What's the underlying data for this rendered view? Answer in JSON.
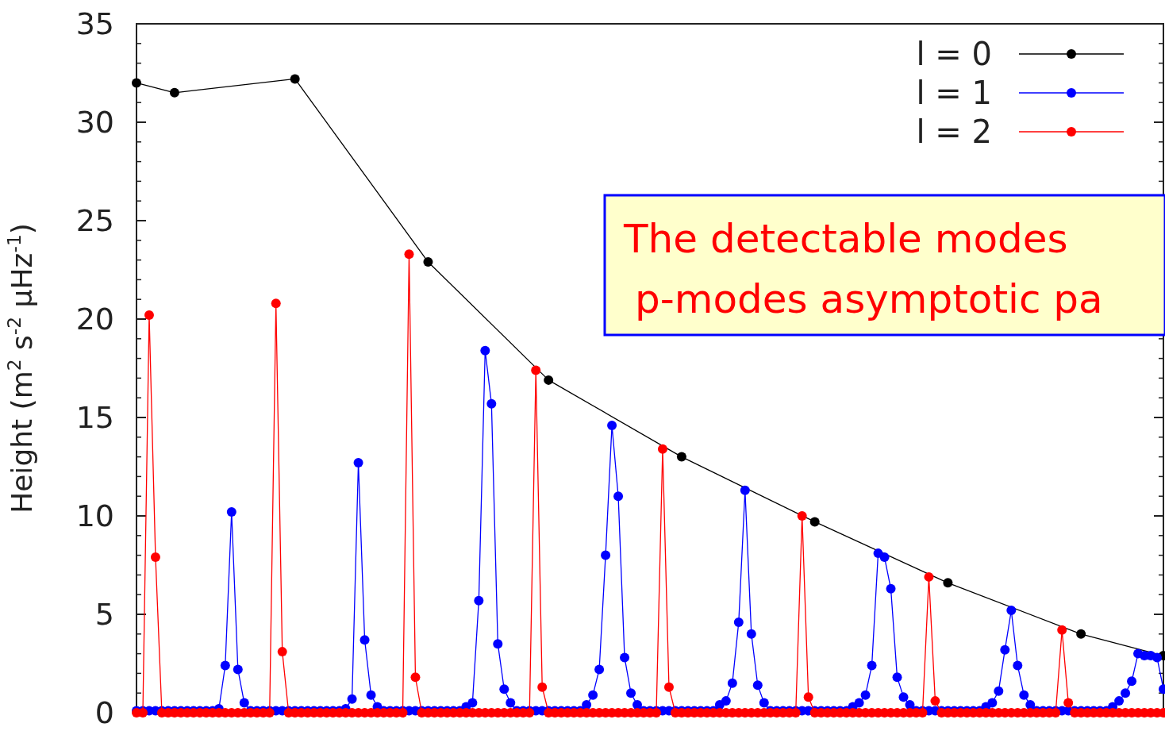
{
  "chart_data": {
    "type": "line",
    "ylabel": "Height (m$^{2}$ s$^{-2}$ μHz$^{-1}$)",
    "categories": [
      null,
      null,
      null,
      null,
      null,
      null,
      null,
      null,
      null,
      null,
      null,
      null,
      null,
      null,
      null,
      null,
      null,
      null,
      null,
      null,
      null,
      null,
      null,
      null,
      null,
      null,
      null,
      null,
      null,
      null,
      null,
      null,
      null,
      null,
      null,
      null,
      null,
      null,
      null,
      null,
      null,
      null,
      null,
      null,
      null,
      null,
      null,
      null,
      null,
      null,
      null,
      null,
      null,
      null,
      null,
      null,
      null,
      null,
      null,
      null,
      null,
      null,
      null,
      null,
      null,
      null,
      null,
      null,
      null,
      null,
      null,
      null,
      null,
      null,
      null,
      null,
      null,
      null,
      null,
      null,
      null,
      null,
      null,
      null,
      null,
      null,
      null,
      null,
      null,
      null,
      null,
      null,
      null,
      null,
      null,
      null,
      null,
      null,
      null,
      null,
      null,
      null,
      null,
      null,
      null,
      null,
      null,
      null,
      null,
      null,
      null,
      null,
      null,
      null,
      null,
      null,
      null,
      null,
      null,
      null,
      null,
      null,
      null,
      null,
      null,
      null,
      null,
      null,
      null,
      null,
      null,
      null,
      null,
      null,
      null,
      null,
      null,
      null,
      null,
      null,
      null,
      null,
      null,
      null,
      null,
      null,
      null,
      null,
      null,
      null,
      null,
      null,
      null,
      null,
      null,
      null,
      null,
      null,
      null,
      null,
      null,
      null,
      null
    ],
    "series": [
      {
        "name": "l = 0",
        "color": "#000000",
        "values": [
          32.0,
          null,
          null,
          null,
          null,
          null,
          31.5,
          null,
          null,
          null,
          null,
          null,
          null,
          null,
          null,
          null,
          null,
          null,
          null,
          null,
          null,
          null,
          null,
          null,
          null,
          32.2,
          null,
          null,
          null,
          null,
          null,
          null,
          null,
          null,
          null,
          null,
          null,
          null,
          null,
          null,
          null,
          null,
          null,
          null,
          null,
          null,
          22.9,
          null,
          null,
          null,
          null,
          null,
          null,
          null,
          null,
          null,
          null,
          null,
          null,
          null,
          null,
          null,
          null,
          null,
          null,
          16.9,
          null,
          null,
          null,
          null,
          null,
          null,
          null,
          null,
          null,
          null,
          null,
          null,
          null,
          null,
          null,
          null,
          null,
          null,
          null,
          null,
          13.0,
          null,
          null,
          null,
          null,
          null,
          null,
          null,
          null,
          null,
          null,
          null,
          null,
          null,
          null,
          null,
          null,
          null,
          null,
          null,
          null,
          9.7,
          null,
          null,
          null,
          null,
          null,
          null,
          null,
          null,
          null,
          null,
          null,
          null,
          null,
          null,
          null,
          null,
          null,
          null,
          null,
          null,
          6.6,
          null,
          null,
          null,
          null,
          null,
          null,
          null,
          null,
          null,
          null,
          null,
          null,
          null,
          null,
          null,
          null,
          null,
          null,
          null,
          null,
          4.0,
          null,
          null,
          null,
          null,
          null,
          null,
          null,
          null,
          null,
          null,
          null,
          null,
          2.9
        ]
      },
      {
        "name": "l = 1",
        "color": "#0000ff",
        "values": [
          0.1,
          0.1,
          0.1,
          0.1,
          0.1,
          0.1,
          0.1,
          0.1,
          0.1,
          0.1,
          0.1,
          0.1,
          0.1,
          0.2,
          2.4,
          10.2,
          2.2,
          0.5,
          0.1,
          0.1,
          0.1,
          0.1,
          0.1,
          0.1,
          0.1,
          0.1,
          0.1,
          0.1,
          0.1,
          0.1,
          0.1,
          0.1,
          0.1,
          0.2,
          0.7,
          12.7,
          3.7,
          0.9,
          0.3,
          0.1,
          0.1,
          0.1,
          0.1,
          0.1,
          0.1,
          0.1,
          0.1,
          0.1,
          0.1,
          0.1,
          0.1,
          0.1,
          0.3,
          0.5,
          5.7,
          18.4,
          15.7,
          3.5,
          1.2,
          0.5,
          0.1,
          0.1,
          0.1,
          0.1,
          0.1,
          0.1,
          0.1,
          0.1,
          0.1,
          0.1,
          0.1,
          0.4,
          0.9,
          2.2,
          8.0,
          14.6,
          11.0,
          2.8,
          1.0,
          0.4,
          0.1,
          0.1,
          0.1,
          0.1,
          0.1,
          0.1,
          0.1,
          0.1,
          0.1,
          0.1,
          0.1,
          0.1,
          0.4,
          0.6,
          1.5,
          4.6,
          11.3,
          4.0,
          1.4,
          0.5,
          0.1,
          0.1,
          0.1,
          0.1,
          0.1,
          0.1,
          0.1,
          0.1,
          0.1,
          0.1,
          0.1,
          0.1,
          0.1,
          0.3,
          0.5,
          0.9,
          2.4,
          8.1,
          7.9,
          6.3,
          1.8,
          0.8,
          0.4,
          0.1,
          0.1,
          0.1,
          0.1,
          0.1,
          0.1,
          0.1,
          0.1,
          0.1,
          0.1,
          0.1,
          0.3,
          0.5,
          1.1,
          3.2,
          5.2,
          2.4,
          0.9,
          0.4,
          0.1,
          0.1,
          0.1,
          0.1,
          0.1,
          0.1,
          0.1,
          0.1,
          0.1,
          0.1,
          0.1,
          0.1,
          0.3,
          0.6,
          1.0,
          1.6,
          3.0,
          2.9,
          2.9,
          2.8,
          1.2
        ]
      },
      {
        "name": "l = 2",
        "color": "#ff0000",
        "values": [
          0,
          0,
          20.2,
          7.9,
          0,
          0,
          0,
          0,
          0,
          0,
          0,
          0,
          0,
          0,
          0,
          0,
          0,
          0,
          0,
          0,
          0,
          0,
          20.8,
          3.1,
          0,
          0,
          0,
          0,
          0,
          0,
          0,
          0,
          0,
          0,
          0,
          0,
          0,
          0,
          0,
          0,
          0,
          0,
          0,
          23.3,
          1.8,
          0,
          0,
          0,
          0,
          0,
          0,
          0,
          0,
          0,
          0,
          0,
          0,
          0,
          0,
          0,
          0,
          0,
          0,
          17.4,
          1.3,
          0,
          0,
          0,
          0,
          0,
          0,
          0,
          0,
          0,
          0,
          0,
          0,
          0,
          0,
          0,
          0,
          0,
          0,
          13.4,
          1.3,
          0,
          0,
          0,
          0,
          0,
          0,
          0,
          0,
          0,
          0,
          0,
          0,
          0,
          0,
          0,
          0,
          0,
          0,
          0,
          0,
          10.0,
          0.8,
          0,
          0,
          0,
          0,
          0,
          0,
          0,
          0,
          0,
          0,
          0,
          0,
          0,
          0,
          0,
          0,
          0,
          0,
          6.9,
          0.6,
          0,
          0,
          0,
          0,
          0,
          0,
          0,
          0,
          0,
          0,
          0,
          0,
          0,
          0,
          0,
          0,
          0,
          0,
          0,
          4.2,
          0.5,
          0,
          0,
          0,
          0,
          0,
          0,
          0,
          0,
          0,
          0,
          0,
          0,
          0,
          0,
          0
        ]
      }
    ],
    "ylim": [
      0,
      35
    ],
    "yticks": [
      0,
      5,
      10,
      15,
      20,
      25,
      30,
      35
    ],
    "marker": "circle",
    "line_style": "solid",
    "grid": false,
    "legend": "top right",
    "annotations": [
      "The detectable modes",
      "p-modes asymptotic pa"
    ]
  }
}
